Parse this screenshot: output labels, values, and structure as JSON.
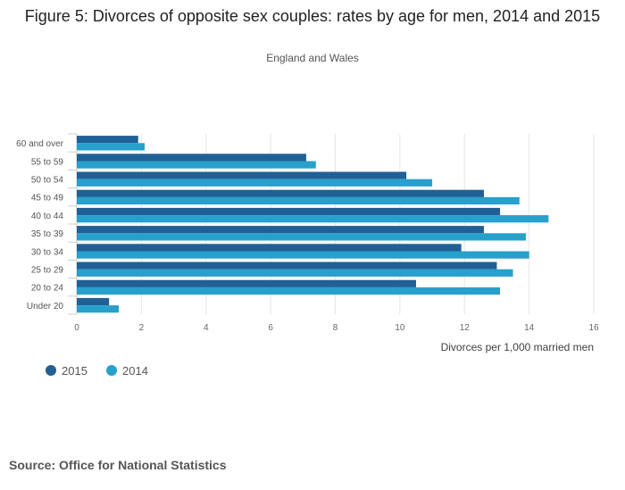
{
  "title": "Figure 5: Divorces of opposite sex couples: rates by age for men, 2014 and 2015",
  "subtitle": "England and Wales",
  "source": "Source: Office for National Statistics",
  "chart_data": {
    "type": "bar",
    "orientation": "horizontal",
    "categories": [
      "60 and over",
      "55 to 59",
      "50 to 54",
      "45 to 49",
      "40 to 44",
      "35 to 39",
      "30 to 34",
      "25 to 29",
      "20 to 24",
      "Under 20"
    ],
    "series": [
      {
        "name": "2015",
        "color": "#206095",
        "values": [
          1.9,
          7.1,
          10.2,
          12.6,
          13.1,
          12.6,
          11.9,
          13.0,
          10.5,
          1.0
        ]
      },
      {
        "name": "2014",
        "color": "#27A0CC",
        "values": [
          2.1,
          7.4,
          11.0,
          13.7,
          14.6,
          13.9,
          14.0,
          13.5,
          13.1,
          1.3
        ]
      }
    ],
    "xlabel": "Divorces per 1,000 married men",
    "xlim": [
      0,
      16
    ],
    "xticks": [
      0,
      2,
      4,
      6,
      8,
      10,
      12,
      14,
      16
    ],
    "grid": true,
    "legend_position": "bottom-left"
  }
}
